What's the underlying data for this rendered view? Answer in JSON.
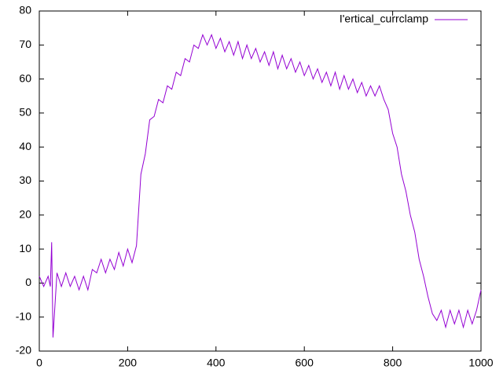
{
  "chart_data": {
    "type": "line",
    "x": [
      0,
      10,
      20,
      25,
      28,
      31,
      40,
      50,
      60,
      70,
      80,
      90,
      100,
      110,
      120,
      130,
      140,
      150,
      160,
      170,
      180,
      190,
      200,
      210,
      220,
      230,
      240,
      250,
      260,
      270,
      280,
      290,
      300,
      310,
      320,
      330,
      340,
      350,
      360,
      370,
      380,
      390,
      400,
      410,
      420,
      430,
      440,
      450,
      460,
      470,
      480,
      490,
      500,
      510,
      520,
      530,
      540,
      550,
      560,
      570,
      580,
      590,
      600,
      610,
      620,
      630,
      640,
      650,
      660,
      670,
      680,
      690,
      700,
      710,
      720,
      730,
      740,
      750,
      760,
      770,
      780,
      790,
      800,
      810,
      820,
      830,
      840,
      850,
      860,
      870,
      880,
      890,
      900,
      910,
      920,
      930,
      940,
      950,
      960,
      970,
      980,
      990,
      1000
    ],
    "series": [
      {
        "name": "I'ertical_currclamp",
        "color": "#9400d3",
        "values": [
          2,
          -1,
          2,
          -1,
          12,
          -16,
          3,
          -1,
          3,
          -1,
          2,
          -2,
          2,
          -2,
          4,
          3,
          7,
          3,
          7,
          4,
          9,
          5,
          10,
          6,
          11,
          32,
          38,
          48,
          49,
          54,
          53,
          58,
          57,
          62,
          61,
          66,
          65,
          70,
          69,
          73,
          70,
          73,
          69,
          72,
          68,
          71,
          67,
          71,
          66,
          70,
          66,
          69,
          65,
          68,
          64,
          68,
          63,
          67,
          63,
          66,
          62,
          65,
          61,
          64,
          60,
          63,
          59,
          62,
          58,
          62,
          57,
          61,
          57,
          60,
          56,
          59,
          55,
          58,
          55,
          58,
          54,
          51,
          44,
          40,
          32,
          27,
          20,
          15,
          7,
          2,
          -4,
          -9,
          -11,
          -8,
          -13,
          -8,
          -12,
          -8,
          -13,
          -8,
          -12,
          -8,
          -2
        ]
      }
    ],
    "xlim": [
      0,
      1000
    ],
    "ylim": [
      -20,
      80
    ],
    "xticks": [
      0,
      200,
      400,
      600,
      800,
      1000
    ],
    "yticks": [
      -20,
      -10,
      0,
      10,
      20,
      30,
      40,
      50,
      60,
      70,
      80
    ],
    "grid": false,
    "legend": "top-right"
  }
}
